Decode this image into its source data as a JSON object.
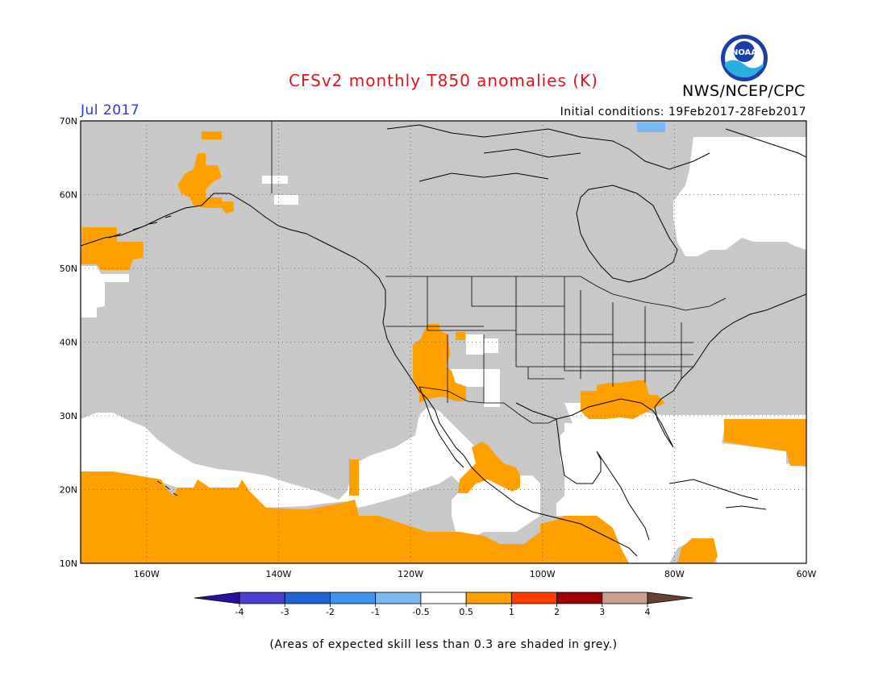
{
  "header": {
    "title": "CFSv2 monthly T850 anomalies (K)",
    "brand": "NWS/NCEP/CPC",
    "logo_text": "NOAA",
    "period": "Jul 2017",
    "initial_conditions": "Initial conditions: 19Feb2017-28Feb2017"
  },
  "map": {
    "lat_range": [
      10,
      70
    ],
    "lon_range": [
      -170,
      -60
    ],
    "lat_ticks": [
      "70N",
      "60N",
      "50N",
      "40N",
      "30N",
      "20N",
      "10N"
    ],
    "lon_ticks": [
      "160W",
      "140W",
      "120W",
      "100W",
      "80W",
      "60W"
    ],
    "background_color": "#c8c8c8",
    "gridlines": "dotted"
  },
  "colorbar": {
    "labels": [
      "-4",
      "-3",
      "-2",
      "-1",
      "-0.5",
      "0.5",
      "1",
      "2",
      "3",
      "4"
    ],
    "colors": [
      "#2a0f9a",
      "#4a3fd0",
      "#1e64d2",
      "#3c96ee",
      "#7ab8f2",
      "#ffffff",
      "#ffa000",
      "#ff3c00",
      "#a00000",
      "#c8a090",
      "#6a4030"
    ]
  },
  "footnote": "(Areas of expected skill less than 0.3 are shaded in grey.)"
}
